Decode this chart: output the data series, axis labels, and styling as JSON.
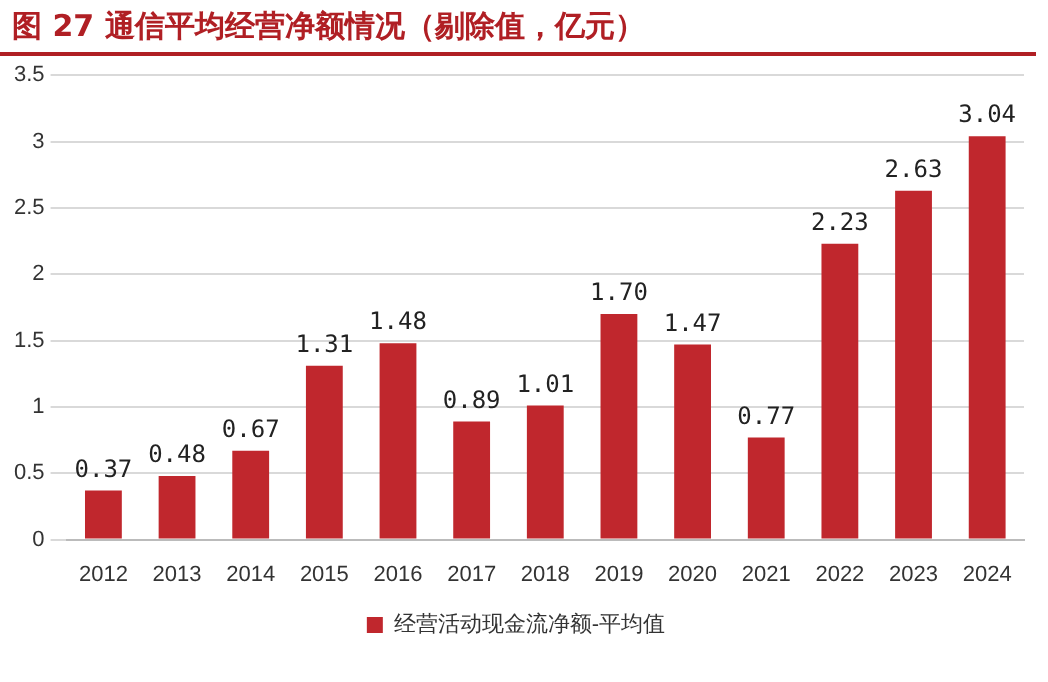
{
  "chart_data": {
    "type": "bar",
    "title": "图 27  通信平均经营净额情况（剔除值，亿元）",
    "categories": [
      "2012",
      "2013",
      "2014",
      "2015",
      "2016",
      "2017",
      "2018",
      "2019",
      "2020",
      "2021",
      "2022",
      "2023",
      "2024"
    ],
    "series": [
      {
        "name": "经营活动现金流净额-平均值",
        "color": "#c0272d",
        "values": [
          0.37,
          0.48,
          0.67,
          1.31,
          1.48,
          0.89,
          1.01,
          1.7,
          1.47,
          0.77,
          2.23,
          2.63,
          3.04
        ],
        "value_labels": [
          "0.37",
          "0.48",
          "0.67",
          "1.31",
          "1.48",
          "0.89",
          "1.01",
          "1.70",
          "1.47",
          "0.77",
          "2.23",
          "2.63",
          "3.04"
        ]
      }
    ],
    "ylim": [
      0,
      3.5
    ],
    "yticks": [
      0,
      0.5,
      1,
      1.5,
      2,
      2.5,
      3,
      3.5
    ],
    "grid": "y",
    "legend": "bottom"
  }
}
